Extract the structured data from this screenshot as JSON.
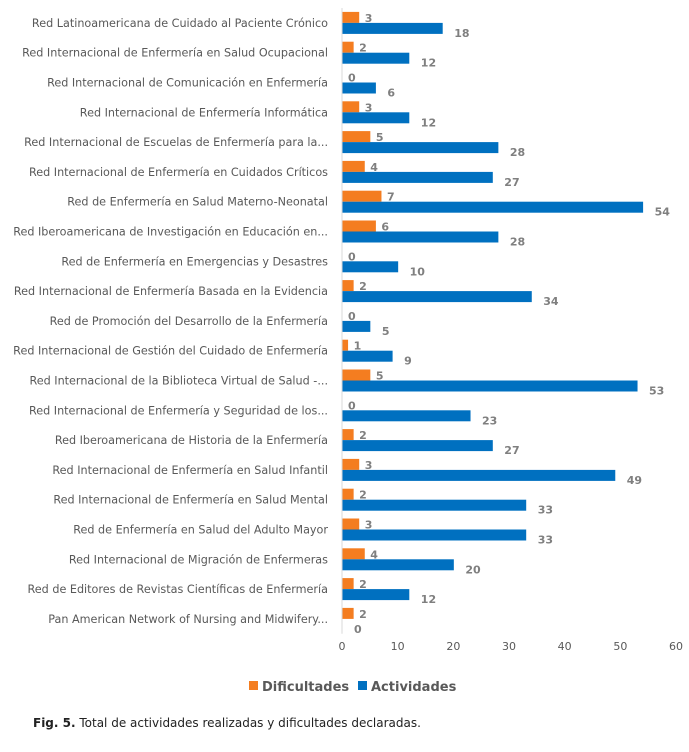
{
  "chart_data": {
    "type": "bar",
    "orientation": "horizontal",
    "title": "",
    "xlabel": "",
    "ylabel": "",
    "xlim": [
      0,
      60
    ],
    "x_ticks": [
      0,
      10,
      20,
      30,
      40,
      50,
      60
    ],
    "grid": false,
    "legend_position": "bottom",
    "categories": [
      "Red Latinoamericana de Cuidado al Paciente Crónico",
      "Red Internacional de Enfermería en Salud Ocupacional",
      "Red Internacional de Comunicación en Enfermería",
      "Red Internacional de Enfermería Informática",
      "Red Internacional de Escuelas de Enfermería para la...",
      "Red Internacional de Enfermería en Cuidados Críticos",
      "Red de Enfermería en Salud Materno-Neonatal",
      "Red Iberoamericana de Investigación en Educación en...",
      "Red de Enfermería en Emergencias y Desastres",
      "Red Internacional de Enfermería Basada en la Evidencia",
      "Red de Promoción del Desarrollo de la Enfermería",
      "Red Internacional de Gestión del Cuidado de Enfermería",
      "Red Internacional de la Biblioteca Virtual de Salud -...",
      "Red Internacional de Enfermería y Seguridad de los...",
      "Red Iberoamericana de Historia de la Enfermería",
      "Red Internacional de Enfermería en Salud Infantil",
      "Red Internacional de Enfermería en Salud Mental",
      "Red de Enfermería en Salud del Adulto Mayor",
      "Red Internacional de Migración de Enfermeras",
      "Red de Editores de Revistas Científicas de Enfermería",
      "Pan American Network of Nursing and Midwifery..."
    ],
    "series": [
      {
        "name": "Dificultades",
        "color": "#f47d20",
        "values": [
          3,
          2,
          0,
          3,
          5,
          4,
          7,
          6,
          0,
          2,
          0,
          1,
          5,
          0,
          2,
          3,
          2,
          3,
          4,
          2,
          2
        ]
      },
      {
        "name": "Actividades",
        "color": "#0070c0",
        "values": [
          18,
          12,
          6,
          12,
          28,
          27,
          54,
          28,
          10,
          34,
          5,
          9,
          53,
          23,
          27,
          49,
          33,
          33,
          20,
          12,
          0
        ]
      }
    ]
  },
  "caption": {
    "prefix": "Fig. 5.",
    "text": " Total de actividades realizadas y dificultades declaradas."
  }
}
